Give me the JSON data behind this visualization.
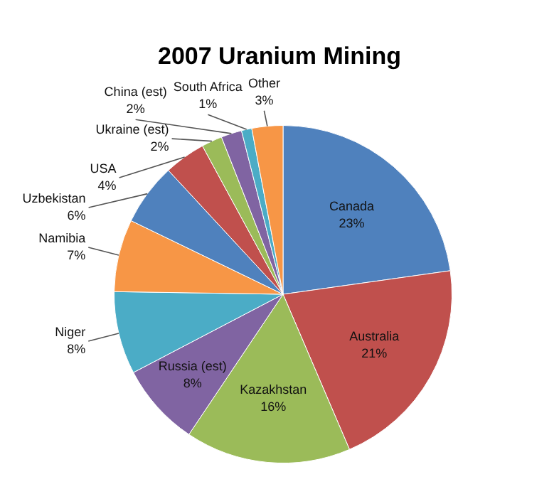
{
  "chart_data": {
    "type": "pie",
    "title": "2007 Uranium Mining",
    "categories": [
      "Canada",
      "Australia",
      "Kazakhstan",
      "Russia (est)",
      "Niger",
      "Namibia",
      "Uzbekistan",
      "USA",
      "Ukraine (est)",
      "China (est)",
      "South Africa",
      "Other"
    ],
    "values": [
      23,
      21,
      16,
      8,
      8,
      7,
      6,
      4,
      2,
      2,
      1,
      3
    ],
    "value_labels": [
      "23%",
      "21%",
      "16%",
      "8%",
      "8%",
      "7%",
      "6%",
      "4%",
      "2%",
      "2%",
      "1%",
      "3%"
    ],
    "colors": [
      "#4f81bd",
      "#c0504d",
      "#9bbb59",
      "#8064a2",
      "#4bacc6",
      "#f79646",
      "#4f81bd",
      "#c0504d",
      "#9bbb59",
      "#8064a2",
      "#4bacc6",
      "#f79646"
    ],
    "legend": false
  }
}
